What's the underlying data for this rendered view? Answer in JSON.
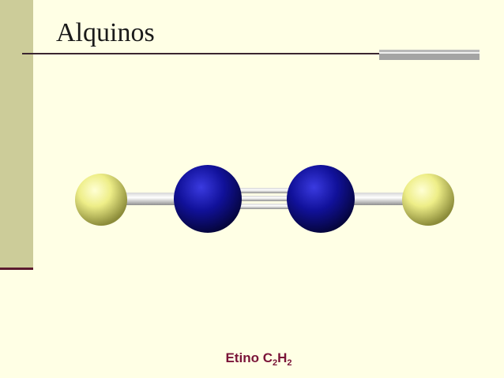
{
  "slide": {
    "title": "Alquinos",
    "caption": {
      "name": "Etino",
      "formula_part1": "C",
      "formula_sub1": "2",
      "formula_part2": "H",
      "formula_sub2": "2"
    }
  },
  "molecule": {
    "atoms": [
      {
        "element": "H",
        "color": "#eeee88"
      },
      {
        "element": "C",
        "color": "#11119a"
      },
      {
        "element": "C",
        "color": "#11119a"
      },
      {
        "element": "H",
        "color": "#eeee88"
      }
    ],
    "bonds": [
      {
        "from": 0,
        "to": 1,
        "order": 1
      },
      {
        "from": 1,
        "to": 2,
        "order": 3
      },
      {
        "from": 2,
        "to": 3,
        "order": 1
      }
    ]
  }
}
